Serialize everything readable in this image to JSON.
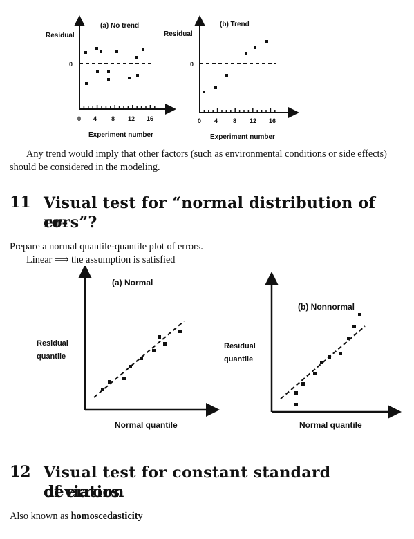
{
  "figure_top": {
    "left_panel": {
      "title": "(a) No trend",
      "ylabel": "Residual",
      "zero_label": "0",
      "xlabel": "Experiment number",
      "ticks": [
        "0",
        "4",
        "8",
        "12",
        "16"
      ]
    },
    "right_panel": {
      "title": "(b) Trend",
      "ylabel": "Residual",
      "zero_label": "0",
      "xlabel": "Experiment number",
      "ticks": [
        "0",
        "4",
        "8",
        "12",
        "16"
      ]
    }
  },
  "para_trend": "Any trend would imply that other factors (such as environmental conditions or side effects) should be considered in the modeling.",
  "section11": {
    "number": "11",
    "title_line1": "Visual test for “normal distribution of er-",
    "title_line2": "rors”?"
  },
  "para_qq_1": "Prepare a normal quantile-quantile plot of errors.",
  "para_qq_2": "Linear ⟹ the assumption is satisfied",
  "figure_qq": {
    "left_panel": {
      "title": "(a) Normal",
      "ylabel_line1": "Residual",
      "ylabel_line2": "quantile",
      "xlabel": "Normal quantile"
    },
    "right_panel": {
      "title": "(b) Nonnormal",
      "ylabel_line1": "Residual",
      "ylabel_line2": "quantile",
      "xlabel": "Normal quantile"
    }
  },
  "section12": {
    "number": "12",
    "title_line1": "Visual test for constant standard deviation",
    "title_line2": "of errors"
  },
  "para_homo_prefix": "Also known as ",
  "para_homo_bold": "homoscedasticity"
}
